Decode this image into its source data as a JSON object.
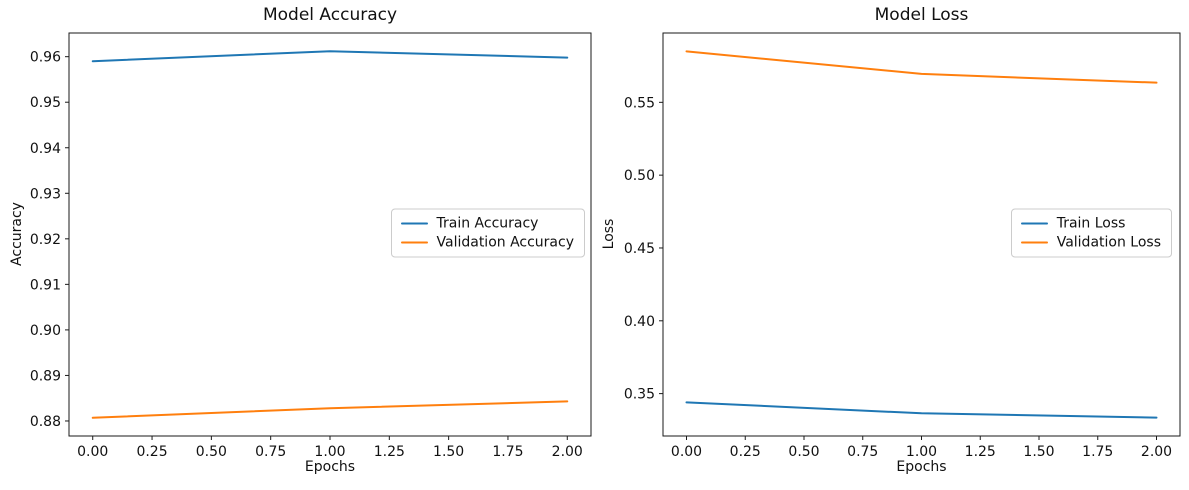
{
  "figure": {
    "background": "#ffffff",
    "spine_color": "#1a1a1a"
  },
  "chart_data": [
    {
      "type": "line",
      "title": "Model Accuracy",
      "xlabel": "Epochs",
      "ylabel": "Accuracy",
      "x": [
        0,
        1,
        2
      ],
      "series": [
        {
          "name": "Train Accuracy",
          "color": "#1f77b4",
          "values": [
            0.959,
            0.9612,
            0.9598
          ]
        },
        {
          "name": "Validation Accuracy",
          "color": "#ff7f0e",
          "values": [
            0.8807,
            0.8828,
            0.8843
          ]
        }
      ],
      "xlim": [
        -0.1,
        2.1
      ],
      "ylim": [
        0.8767,
        0.9652
      ],
      "x_ticks": {
        "values": [
          0,
          0.25,
          0.5,
          0.75,
          1.0,
          1.25,
          1.5,
          1.75,
          2.0
        ],
        "labels": [
          "0.00",
          "0.25",
          "0.50",
          "0.75",
          "1.00",
          "1.25",
          "1.50",
          "1.75",
          "2.00"
        ]
      },
      "y_ticks": {
        "values": [
          0.88,
          0.89,
          0.9,
          0.91,
          0.92,
          0.93,
          0.94,
          0.95,
          0.96
        ],
        "labels": [
          "0.88",
          "0.89",
          "0.90",
          "0.91",
          "0.92",
          "0.93",
          "0.94",
          "0.95",
          "0.96"
        ]
      },
      "grid": false,
      "legend_position": "center right"
    },
    {
      "type": "line",
      "title": "Model Loss",
      "xlabel": "Epochs",
      "ylabel": "Loss",
      "x": [
        0,
        1,
        2
      ],
      "series": [
        {
          "name": "Train Loss",
          "color": "#1f77b4",
          "values": [
            0.344,
            0.3365,
            0.3335
          ]
        },
        {
          "name": "Validation Loss",
          "color": "#ff7f0e",
          "values": [
            0.585,
            0.5695,
            0.5635
          ]
        }
      ],
      "xlim": [
        -0.1,
        2.1
      ],
      "ylim": [
        0.3209,
        0.5976
      ],
      "x_ticks": {
        "values": [
          0,
          0.25,
          0.5,
          0.75,
          1.0,
          1.25,
          1.5,
          1.75,
          2.0
        ],
        "labels": [
          "0.00",
          "0.25",
          "0.50",
          "0.75",
          "1.00",
          "1.25",
          "1.50",
          "1.75",
          "2.00"
        ]
      },
      "y_ticks": {
        "values": [
          0.35,
          0.4,
          0.45,
          0.5,
          0.55
        ],
        "labels": [
          "0.35",
          "0.40",
          "0.45",
          "0.50",
          "0.55"
        ]
      },
      "grid": false,
      "legend_position": "center right"
    }
  ]
}
